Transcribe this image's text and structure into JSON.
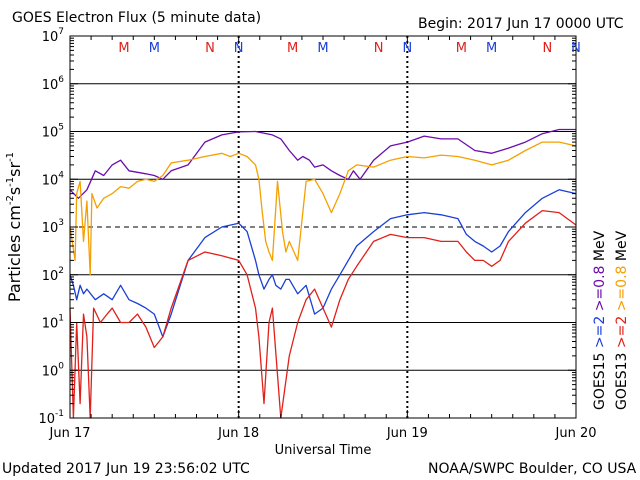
{
  "header": {
    "title": "GOES Electron Flux (5 minute data)",
    "begin": "Begin: 2017 Jun 17 0000 UTC"
  },
  "footer": {
    "updated": "Updated 2017 Jun 19 23:56:02 UTC",
    "credit": "NOAA/SWPC Boulder, CO USA"
  },
  "chart_data": {
    "type": "line",
    "title": "GOES Electron Flux (5 minute data)",
    "xlabel": "Universal Time",
    "ylabel": "Particles cm-2s-1sr-1",
    "y_scale": "log",
    "ylim": [
      0.1,
      10000000
    ],
    "xlim_days": [
      0,
      3
    ],
    "x_tick_labels": [
      "Jun 17",
      "Jun 18",
      "Jun 19",
      "Jun 20"
    ],
    "y_tick_labels": [
      {
        "base": "10",
        "exp": "-1"
      },
      {
        "base": "10",
        "exp": "0"
      },
      {
        "base": "10",
        "exp": "1"
      },
      {
        "base": "10",
        "exp": "2"
      },
      {
        "base": "10",
        "exp": "3"
      },
      {
        "base": "10",
        "exp": "4"
      },
      {
        "base": "10",
        "exp": "5"
      },
      {
        "base": "10",
        "exp": "6"
      },
      {
        "base": "10",
        "exp": "7"
      }
    ],
    "dashed_threshold": 1000,
    "grid_lines": [
      1,
      10,
      100,
      10000,
      100000,
      1000000
    ],
    "mn_markers": [
      {
        "label": "M",
        "day": 0.32,
        "color": "#e0201a"
      },
      {
        "label": "M",
        "day": 0.5,
        "color": "#1a3fd6"
      },
      {
        "label": "N",
        "day": 0.83,
        "color": "#e0201a"
      },
      {
        "label": "N",
        "day": 1.0,
        "color": "#1a3fd6"
      },
      {
        "label": "M",
        "day": 1.32,
        "color": "#e0201a"
      },
      {
        "label": "M",
        "day": 1.5,
        "color": "#1a3fd6"
      },
      {
        "label": "N",
        "day": 1.83,
        "color": "#e0201a"
      },
      {
        "label": "N",
        "day": 2.0,
        "color": "#1a3fd6"
      },
      {
        "label": "M",
        "day": 2.32,
        "color": "#e0201a"
      },
      {
        "label": "M",
        "day": 2.5,
        "color": "#1a3fd6"
      },
      {
        "label": "N",
        "day": 2.83,
        "color": "#e0201a"
      },
      {
        "label": "N",
        "day": 3.0,
        "color": "#1a3fd6"
      }
    ],
    "legend": {
      "goes13": {
        "label": "GOES13",
        "ge2": ">=2",
        "ge08": ">=0.8",
        "unit": "MeV"
      },
      "goes15": {
        "label": "GOES15",
        "ge2": ">=2",
        "ge08": ">=0.8",
        "unit": "MeV"
      }
    },
    "colors": {
      "goes15_ge08": "#6a0dad",
      "goes13_ge08": "#f5a000",
      "goes15_ge2": "#1a3fd6",
      "goes13_ge2": "#e0201a",
      "text_red": "#e0201a",
      "text_blue": "#1a3fd6",
      "text_purple": "#6a0dad",
      "text_orange": "#f5a000"
    },
    "series": [
      {
        "name": "GOES15 >=0.8 MeV",
        "color": "#6a0dad",
        "points": [
          [
            0.0,
            6000
          ],
          [
            0.05,
            4000
          ],
          [
            0.1,
            6000
          ],
          [
            0.15,
            15000
          ],
          [
            0.2,
            12000
          ],
          [
            0.25,
            20000
          ],
          [
            0.3,
            25000
          ],
          [
            0.35,
            15000
          ],
          [
            0.4,
            14000
          ],
          [
            0.45,
            13000
          ],
          [
            0.5,
            12000
          ],
          [
            0.55,
            10000
          ],
          [
            0.6,
            15000
          ],
          [
            0.7,
            20000
          ],
          [
            0.8,
            60000
          ],
          [
            0.9,
            85000
          ],
          [
            1.0,
            98000
          ],
          [
            1.1,
            100000
          ],
          [
            1.2,
            85000
          ],
          [
            1.25,
            70000
          ],
          [
            1.3,
            40000
          ],
          [
            1.35,
            25000
          ],
          [
            1.38,
            30000
          ],
          [
            1.42,
            25000
          ],
          [
            1.45,
            18000
          ],
          [
            1.5,
            20000
          ],
          [
            1.55,
            15000
          ],
          [
            1.6,
            12000
          ],
          [
            1.65,
            10000
          ],
          [
            1.68,
            15000
          ],
          [
            1.72,
            10000
          ],
          [
            1.8,
            25000
          ],
          [
            1.9,
            50000
          ],
          [
            2.0,
            60000
          ],
          [
            2.1,
            80000
          ],
          [
            2.2,
            70000
          ],
          [
            2.3,
            70000
          ],
          [
            2.4,
            40000
          ],
          [
            2.5,
            35000
          ],
          [
            2.6,
            45000
          ],
          [
            2.7,
            60000
          ],
          [
            2.8,
            90000
          ],
          [
            2.9,
            110000
          ],
          [
            3.0,
            110000
          ]
        ]
      },
      {
        "name": "GOES13 >=0.8 MeV",
        "color": "#f5a000",
        "points": [
          [
            0.0,
            1000
          ],
          [
            0.03,
            200
          ],
          [
            0.04,
            5000
          ],
          [
            0.06,
            9000
          ],
          [
            0.08,
            500
          ],
          [
            0.1,
            3500
          ],
          [
            0.12,
            100
          ],
          [
            0.13,
            5000
          ],
          [
            0.16,
            2500
          ],
          [
            0.2,
            4000
          ],
          [
            0.25,
            5000
          ],
          [
            0.3,
            7000
          ],
          [
            0.35,
            6500
          ],
          [
            0.4,
            9000
          ],
          [
            0.45,
            10000
          ],
          [
            0.5,
            9000
          ],
          [
            0.55,
            12000
          ],
          [
            0.6,
            22000
          ],
          [
            0.7,
            25000
          ],
          [
            0.8,
            30000
          ],
          [
            0.9,
            35000
          ],
          [
            0.95,
            30000
          ],
          [
            1.0,
            35000
          ],
          [
            1.05,
            30000
          ],
          [
            1.1,
            20000
          ],
          [
            1.12,
            10000
          ],
          [
            1.14,
            2000
          ],
          [
            1.16,
            500
          ],
          [
            1.18,
            300
          ],
          [
            1.2,
            200
          ],
          [
            1.23,
            9000
          ],
          [
            1.26,
            800
          ],
          [
            1.28,
            300
          ],
          [
            1.3,
            500
          ],
          [
            1.35,
            200
          ],
          [
            1.4,
            9000
          ],
          [
            1.45,
            10000
          ],
          [
            1.5,
            5000
          ],
          [
            1.55,
            2000
          ],
          [
            1.6,
            5000
          ],
          [
            1.65,
            15000
          ],
          [
            1.7,
            20000
          ],
          [
            1.8,
            18000
          ],
          [
            1.9,
            25000
          ],
          [
            2.0,
            30000
          ],
          [
            2.1,
            28000
          ],
          [
            2.2,
            32000
          ],
          [
            2.3,
            30000
          ],
          [
            2.4,
            25000
          ],
          [
            2.5,
            20000
          ],
          [
            2.6,
            25000
          ],
          [
            2.7,
            40000
          ],
          [
            2.8,
            60000
          ],
          [
            2.9,
            60000
          ],
          [
            3.0,
            50000
          ]
        ]
      },
      {
        "name": "GOES15 >=2 MeV",
        "color": "#1a3fd6",
        "points": [
          [
            0.0,
            100
          ],
          [
            0.02,
            60
          ],
          [
            0.04,
            30
          ],
          [
            0.06,
            60
          ],
          [
            0.08,
            40
          ],
          [
            0.1,
            50
          ],
          [
            0.15,
            30
          ],
          [
            0.2,
            40
          ],
          [
            0.25,
            30
          ],
          [
            0.3,
            60
          ],
          [
            0.35,
            30
          ],
          [
            0.4,
            25
          ],
          [
            0.45,
            20
          ],
          [
            0.5,
            15
          ],
          [
            0.55,
            5
          ],
          [
            0.6,
            15
          ],
          [
            0.7,
            200
          ],
          [
            0.8,
            600
          ],
          [
            0.9,
            1000
          ],
          [
            1.0,
            1200
          ],
          [
            1.05,
            800
          ],
          [
            1.1,
            200
          ],
          [
            1.12,
            100
          ],
          [
            1.15,
            50
          ],
          [
            1.18,
            80
          ],
          [
            1.2,
            100
          ],
          [
            1.22,
            60
          ],
          [
            1.25,
            50
          ],
          [
            1.28,
            80
          ],
          [
            1.3,
            80
          ],
          [
            1.35,
            40
          ],
          [
            1.4,
            60
          ],
          [
            1.45,
            15
          ],
          [
            1.5,
            20
          ],
          [
            1.55,
            50
          ],
          [
            1.6,
            100
          ],
          [
            1.7,
            400
          ],
          [
            1.8,
            800
          ],
          [
            1.9,
            1500
          ],
          [
            2.0,
            1800
          ],
          [
            2.1,
            2000
          ],
          [
            2.2,
            1800
          ],
          [
            2.3,
            1500
          ],
          [
            2.35,
            700
          ],
          [
            2.4,
            500
          ],
          [
            2.45,
            400
          ],
          [
            2.5,
            300
          ],
          [
            2.55,
            400
          ],
          [
            2.6,
            800
          ],
          [
            2.7,
            2000
          ],
          [
            2.8,
            4000
          ],
          [
            2.9,
            6000
          ],
          [
            3.0,
            5000
          ]
        ]
      },
      {
        "name": "GOES13 >=2 MeV",
        "color": "#e0201a",
        "points": [
          [
            0.0,
            20
          ],
          [
            0.02,
            0.1
          ],
          [
            0.04,
            10
          ],
          [
            0.06,
            0.2
          ],
          [
            0.08,
            15
          ],
          [
            0.1,
            5
          ],
          [
            0.12,
            0.1
          ],
          [
            0.14,
            20
          ],
          [
            0.18,
            10
          ],
          [
            0.22,
            15
          ],
          [
            0.25,
            20
          ],
          [
            0.3,
            10
          ],
          [
            0.35,
            10
          ],
          [
            0.4,
            15
          ],
          [
            0.45,
            8
          ],
          [
            0.5,
            3
          ],
          [
            0.55,
            5
          ],
          [
            0.6,
            20
          ],
          [
            0.7,
            200
          ],
          [
            0.8,
            300
          ],
          [
            0.9,
            250
          ],
          [
            1.0,
            200
          ],
          [
            1.05,
            100
          ],
          [
            1.1,
            20
          ],
          [
            1.12,
            5
          ],
          [
            1.15,
            0.2
          ],
          [
            1.18,
            10
          ],
          [
            1.2,
            20
          ],
          [
            1.25,
            0.1
          ],
          [
            1.3,
            2
          ],
          [
            1.35,
            10
          ],
          [
            1.4,
            30
          ],
          [
            1.45,
            50
          ],
          [
            1.5,
            20
          ],
          [
            1.55,
            8
          ],
          [
            1.6,
            30
          ],
          [
            1.65,
            80
          ],
          [
            1.7,
            150
          ],
          [
            1.8,
            500
          ],
          [
            1.9,
            700
          ],
          [
            2.0,
            600
          ],
          [
            2.1,
            600
          ],
          [
            2.2,
            500
          ],
          [
            2.3,
            500
          ],
          [
            2.35,
            300
          ],
          [
            2.4,
            200
          ],
          [
            2.45,
            200
          ],
          [
            2.5,
            150
          ],
          [
            2.55,
            200
          ],
          [
            2.6,
            500
          ],
          [
            2.7,
            1200
          ],
          [
            2.8,
            2200
          ],
          [
            2.9,
            2000
          ],
          [
            3.0,
            1100
          ]
        ]
      }
    ]
  }
}
